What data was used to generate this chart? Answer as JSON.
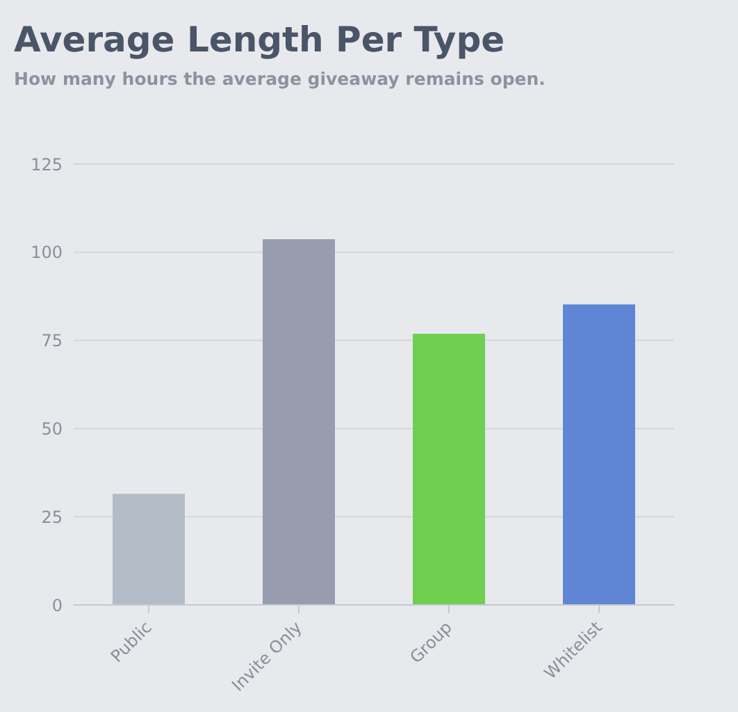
{
  "chart_data": {
    "type": "bar",
    "title": "Average Length Per Type",
    "subtitle": "How many hours the average giveaway remains open.",
    "categories": [
      "Public",
      "Invite Only",
      "Group",
      "Whitelist"
    ],
    "values": [
      31.5,
      103.7,
      76.9,
      85.2
    ],
    "colors": [
      "#b3bcc6",
      "#979cae",
      "#6fcf51",
      "#5f86d4"
    ],
    "ylim": [
      0,
      125
    ],
    "yticks": [
      0,
      25,
      50,
      75,
      100,
      125
    ],
    "grid": "y"
  }
}
